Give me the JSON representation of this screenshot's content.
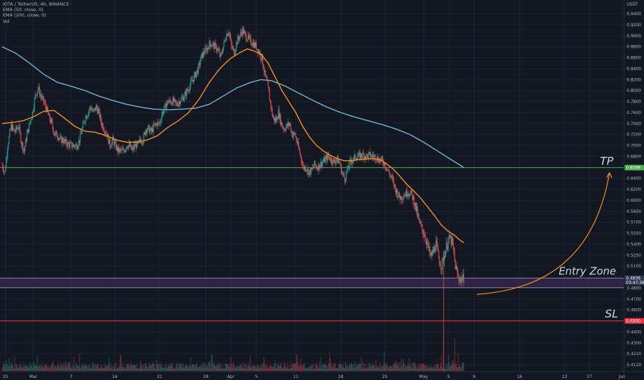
{
  "header": {
    "symbol_line": "IOTA / TetherUS, 4h, BINANCE",
    "ema50_label": "EMA (50, close, 0)",
    "ema200_label": "EMA (200, close, 0)",
    "vol_label": "Vol"
  },
  "currency_label": "USDT",
  "chart_data": {
    "type": "candlestick",
    "title": "IOTA / TetherUS, 4h, BINANCE",
    "x_tick_labels": [
      "25",
      "Mar",
      "7",
      "14",
      "21",
      "28",
      "Apr",
      "5",
      "11",
      "18",
      "25",
      "May",
      "5",
      "9",
      "16",
      "23",
      "27",
      "Jun"
    ],
    "y_tick_labels": [
      "0.9400",
      "0.9200",
      "0.9000",
      "0.8800",
      "0.8600",
      "0.8400",
      "0.8200",
      "0.8000",
      "0.7800",
      "0.7600",
      "0.7400",
      "0.7200",
      "0.7000",
      "0.6800",
      "0.6600",
      "0.6400",
      "0.6200",
      "0.6000",
      "0.5850",
      "0.5700",
      "0.5550",
      "0.5400",
      "0.5250",
      "0.5100",
      "0.4950",
      "0.4800",
      "0.4700",
      "0.4600",
      "0.4500",
      "0.4400",
      "0.4300",
      "0.4210",
      "0.4120"
    ],
    "price_path": [
      [
        0,
        0.665
      ],
      [
        4,
        0.65
      ],
      [
        8,
        0.7
      ],
      [
        13,
        0.735
      ],
      [
        18,
        0.725
      ],
      [
        24,
        0.735
      ],
      [
        28,
        0.705
      ],
      [
        32,
        0.69
      ],
      [
        36,
        0.72
      ],
      [
        40,
        0.74
      ],
      [
        44,
        0.76
      ],
      [
        48,
        0.79
      ],
      [
        52,
        0.805
      ],
      [
        56,
        0.79
      ],
      [
        60,
        0.78
      ],
      [
        64,
        0.768
      ],
      [
        68,
        0.75
      ],
      [
        72,
        0.74
      ],
      [
        76,
        0.72
      ],
      [
        80,
        0.72
      ],
      [
        84,
        0.71
      ],
      [
        88,
        0.71
      ],
      [
        92,
        0.705
      ],
      [
        96,
        0.702
      ],
      [
        100,
        0.7
      ],
      [
        104,
        0.7
      ],
      [
        108,
        0.7
      ],
      [
        112,
        0.71
      ],
      [
        116,
        0.73
      ],
      [
        120,
        0.75
      ],
      [
        124,
        0.76
      ],
      [
        128,
        0.77
      ],
      [
        132,
        0.76
      ],
      [
        136,
        0.77
      ],
      [
        140,
        0.76
      ],
      [
        144,
        0.74
      ],
      [
        148,
        0.73
      ],
      [
        152,
        0.72
      ],
      [
        156,
        0.7
      ],
      [
        160,
        0.71
      ],
      [
        164,
        0.7
      ],
      [
        168,
        0.69
      ],
      [
        172,
        0.69
      ],
      [
        176,
        0.69
      ],
      [
        180,
        0.7
      ],
      [
        184,
        0.7
      ],
      [
        188,
        0.69
      ],
      [
        192,
        0.7
      ],
      [
        196,
        0.7
      ],
      [
        200,
        0.71
      ],
      [
        204,
        0.71
      ],
      [
        208,
        0.73
      ],
      [
        212,
        0.73
      ],
      [
        216,
        0.725
      ],
      [
        220,
        0.735
      ],
      [
        224,
        0.74
      ],
      [
        228,
        0.74
      ],
      [
        232,
        0.76
      ],
      [
        236,
        0.77
      ],
      [
        240,
        0.78
      ],
      [
        244,
        0.78
      ],
      [
        248,
        0.78
      ],
      [
        252,
        0.775
      ],
      [
        256,
        0.78
      ],
      [
        260,
        0.785
      ],
      [
        264,
        0.79
      ],
      [
        268,
        0.8
      ],
      [
        272,
        0.81
      ],
      [
        276,
        0.82
      ],
      [
        280,
        0.83
      ],
      [
        284,
        0.84
      ],
      [
        288,
        0.86
      ],
      [
        292,
        0.87
      ],
      [
        296,
        0.875
      ],
      [
        300,
        0.885
      ],
      [
        304,
        0.885
      ],
      [
        308,
        0.88
      ],
      [
        312,
        0.875
      ],
      [
        316,
        0.86
      ],
      [
        320,
        0.88
      ],
      [
        324,
        0.9
      ],
      [
        328,
        0.91
      ],
      [
        332,
        0.88
      ],
      [
        336,
        0.87
      ],
      [
        340,
        0.89
      ],
      [
        344,
        0.9
      ],
      [
        348,
        0.91
      ],
      [
        352,
        0.9
      ],
      [
        356,
        0.895
      ],
      [
        360,
        0.89
      ],
      [
        364,
        0.885
      ],
      [
        368,
        0.88
      ],
      [
        372,
        0.87
      ],
      [
        376,
        0.86
      ],
      [
        380,
        0.83
      ],
      [
        384,
        0.81
      ],
      [
        388,
        0.78
      ],
      [
        392,
        0.75
      ],
      [
        396,
        0.745
      ],
      [
        400,
        0.76
      ],
      [
        404,
        0.74
      ],
      [
        408,
        0.73
      ],
      [
        412,
        0.735
      ],
      [
        416,
        0.74
      ],
      [
        420,
        0.72
      ],
      [
        424,
        0.72
      ],
      [
        428,
        0.7
      ],
      [
        432,
        0.68
      ],
      [
        436,
        0.66
      ],
      [
        440,
        0.66
      ],
      [
        444,
        0.65
      ],
      [
        448,
        0.655
      ],
      [
        452,
        0.665
      ],
      [
        456,
        0.66
      ],
      [
        460,
        0.665
      ],
      [
        464,
        0.67
      ],
      [
        468,
        0.675
      ],
      [
        472,
        0.68
      ],
      [
        476,
        0.675
      ],
      [
        480,
        0.67
      ],
      [
        484,
        0.675
      ],
      [
        488,
        0.67
      ],
      [
        492,
        0.65
      ],
      [
        496,
        0.64
      ],
      [
        500,
        0.655
      ],
      [
        504,
        0.67
      ],
      [
        508,
        0.675
      ],
      [
        512,
        0.68
      ],
      [
        516,
        0.68
      ],
      [
        520,
        0.682
      ],
      [
        524,
        0.682
      ],
      [
        528,
        0.68
      ],
      [
        532,
        0.682
      ],
      [
        536,
        0.68
      ],
      [
        540,
        0.68
      ],
      [
        544,
        0.675
      ],
      [
        548,
        0.673
      ],
      [
        552,
        0.67
      ],
      [
        556,
        0.66
      ],
      [
        560,
        0.65
      ],
      [
        564,
        0.64
      ],
      [
        568,
        0.625
      ],
      [
        572,
        0.612
      ],
      [
        576,
        0.605
      ],
      [
        580,
        0.608
      ],
      [
        584,
        0.612
      ],
      [
        588,
        0.615
      ],
      [
        592,
        0.612
      ],
      [
        596,
        0.6
      ],
      [
        600,
        0.585
      ],
      [
        604,
        0.568
      ],
      [
        608,
        0.56
      ],
      [
        612,
        0.552
      ],
      [
        616,
        0.538
      ],
      [
        620,
        0.522
      ],
      [
        624,
        0.53
      ],
      [
        628,
        0.54
      ],
      [
        632,
        0.52
      ],
      [
        636,
        0.51
      ],
      [
        640,
        0.525
      ],
      [
        644,
        0.54
      ],
      [
        648,
        0.548
      ],
      [
        652,
        0.54
      ],
      [
        656,
        0.51
      ],
      [
        660,
        0.495
      ],
      [
        664,
        0.492
      ],
      [
        668,
        0.493
      ]
    ],
    "volume_spikes": [
      [
        639,
        0.95
      ],
      [
        655,
        0.8
      ],
      [
        646,
        0.4
      ],
      [
        461,
        0.35
      ],
      [
        300,
        0.25
      ],
      [
        578,
        0.3
      ],
      [
        432,
        0.3
      ]
    ],
    "ema50_path": [
      [
        0,
        0.74
      ],
      [
        15,
        0.742
      ],
      [
        30,
        0.745
      ],
      [
        45,
        0.752
      ],
      [
        60,
        0.762
      ],
      [
        75,
        0.764
      ],
      [
        90,
        0.75
      ],
      [
        105,
        0.735
      ],
      [
        120,
        0.726
      ],
      [
        135,
        0.724
      ],
      [
        150,
        0.718
      ],
      [
        165,
        0.71
      ],
      [
        180,
        0.706
      ],
      [
        195,
        0.706
      ],
      [
        210,
        0.71
      ],
      [
        225,
        0.718
      ],
      [
        240,
        0.733
      ],
      [
        255,
        0.745
      ],
      [
        270,
        0.76
      ],
      [
        285,
        0.784
      ],
      [
        300,
        0.815
      ],
      [
        315,
        0.84
      ],
      [
        330,
        0.858
      ],
      [
        345,
        0.87
      ],
      [
        355,
        0.876
      ],
      [
        365,
        0.872
      ],
      [
        375,
        0.866
      ],
      [
        385,
        0.85
      ],
      [
        395,
        0.825
      ],
      [
        405,
        0.8
      ],
      [
        415,
        0.78
      ],
      [
        425,
        0.76
      ],
      [
        435,
        0.735
      ],
      [
        445,
        0.715
      ],
      [
        455,
        0.7
      ],
      [
        465,
        0.69
      ],
      [
        475,
        0.682
      ],
      [
        485,
        0.676
      ],
      [
        495,
        0.672
      ],
      [
        505,
        0.672
      ],
      [
        515,
        0.674
      ],
      [
        525,
        0.675
      ],
      [
        535,
        0.676
      ],
      [
        545,
        0.675
      ],
      [
        555,
        0.668
      ],
      [
        565,
        0.658
      ],
      [
        575,
        0.645
      ],
      [
        585,
        0.63
      ],
      [
        595,
        0.618
      ],
      [
        605,
        0.605
      ],
      [
        615,
        0.592
      ],
      [
        625,
        0.58
      ],
      [
        635,
        0.567
      ],
      [
        645,
        0.558
      ],
      [
        655,
        0.552
      ],
      [
        662,
        0.546
      ],
      [
        668,
        0.542
      ]
    ],
    "ema200_path": [
      [
        0,
        0.88
      ],
      [
        20,
        0.868
      ],
      [
        40,
        0.85
      ],
      [
        60,
        0.83
      ],
      [
        80,
        0.815
      ],
      [
        100,
        0.808
      ],
      [
        120,
        0.8
      ],
      [
        140,
        0.79
      ],
      [
        160,
        0.782
      ],
      [
        180,
        0.775
      ],
      [
        200,
        0.77
      ],
      [
        220,
        0.766
      ],
      [
        240,
        0.765
      ],
      [
        260,
        0.766
      ],
      [
        280,
        0.768
      ],
      [
        300,
        0.775
      ],
      [
        320,
        0.79
      ],
      [
        340,
        0.805
      ],
      [
        360,
        0.815
      ],
      [
        375,
        0.82
      ],
      [
        390,
        0.818
      ],
      [
        410,
        0.808
      ],
      [
        430,
        0.795
      ],
      [
        450,
        0.782
      ],
      [
        470,
        0.77
      ],
      [
        490,
        0.76
      ],
      [
        510,
        0.752
      ],
      [
        530,
        0.745
      ],
      [
        550,
        0.738
      ],
      [
        570,
        0.73
      ],
      [
        590,
        0.72
      ],
      [
        610,
        0.706
      ],
      [
        630,
        0.69
      ],
      [
        650,
        0.674
      ],
      [
        668,
        0.66
      ]
    ],
    "levels": {
      "tp": 0.6596,
      "entry_top": 0.4936,
      "entry_bottom": 0.4805,
      "sl": 0.45
    },
    "price_tags": {
      "tp_label": "0.6596",
      "current_label": "0.4936",
      "countdown_label": "03:47:36",
      "sl_label": "0.4500"
    },
    "annotations": {
      "tp": "TP",
      "entry_zone": "Entry Zone",
      "sl": "SL"
    },
    "colors": {
      "background": "#131722",
      "up": "#26a69a",
      "down": "#ef5350",
      "ema50": "#f7931a",
      "ema200": "#6fb8d6",
      "tp_line": "#4caf50",
      "sl_line": "#f23645",
      "entry_fill": "#3a2a52",
      "arrow": "#f7931a"
    }
  }
}
